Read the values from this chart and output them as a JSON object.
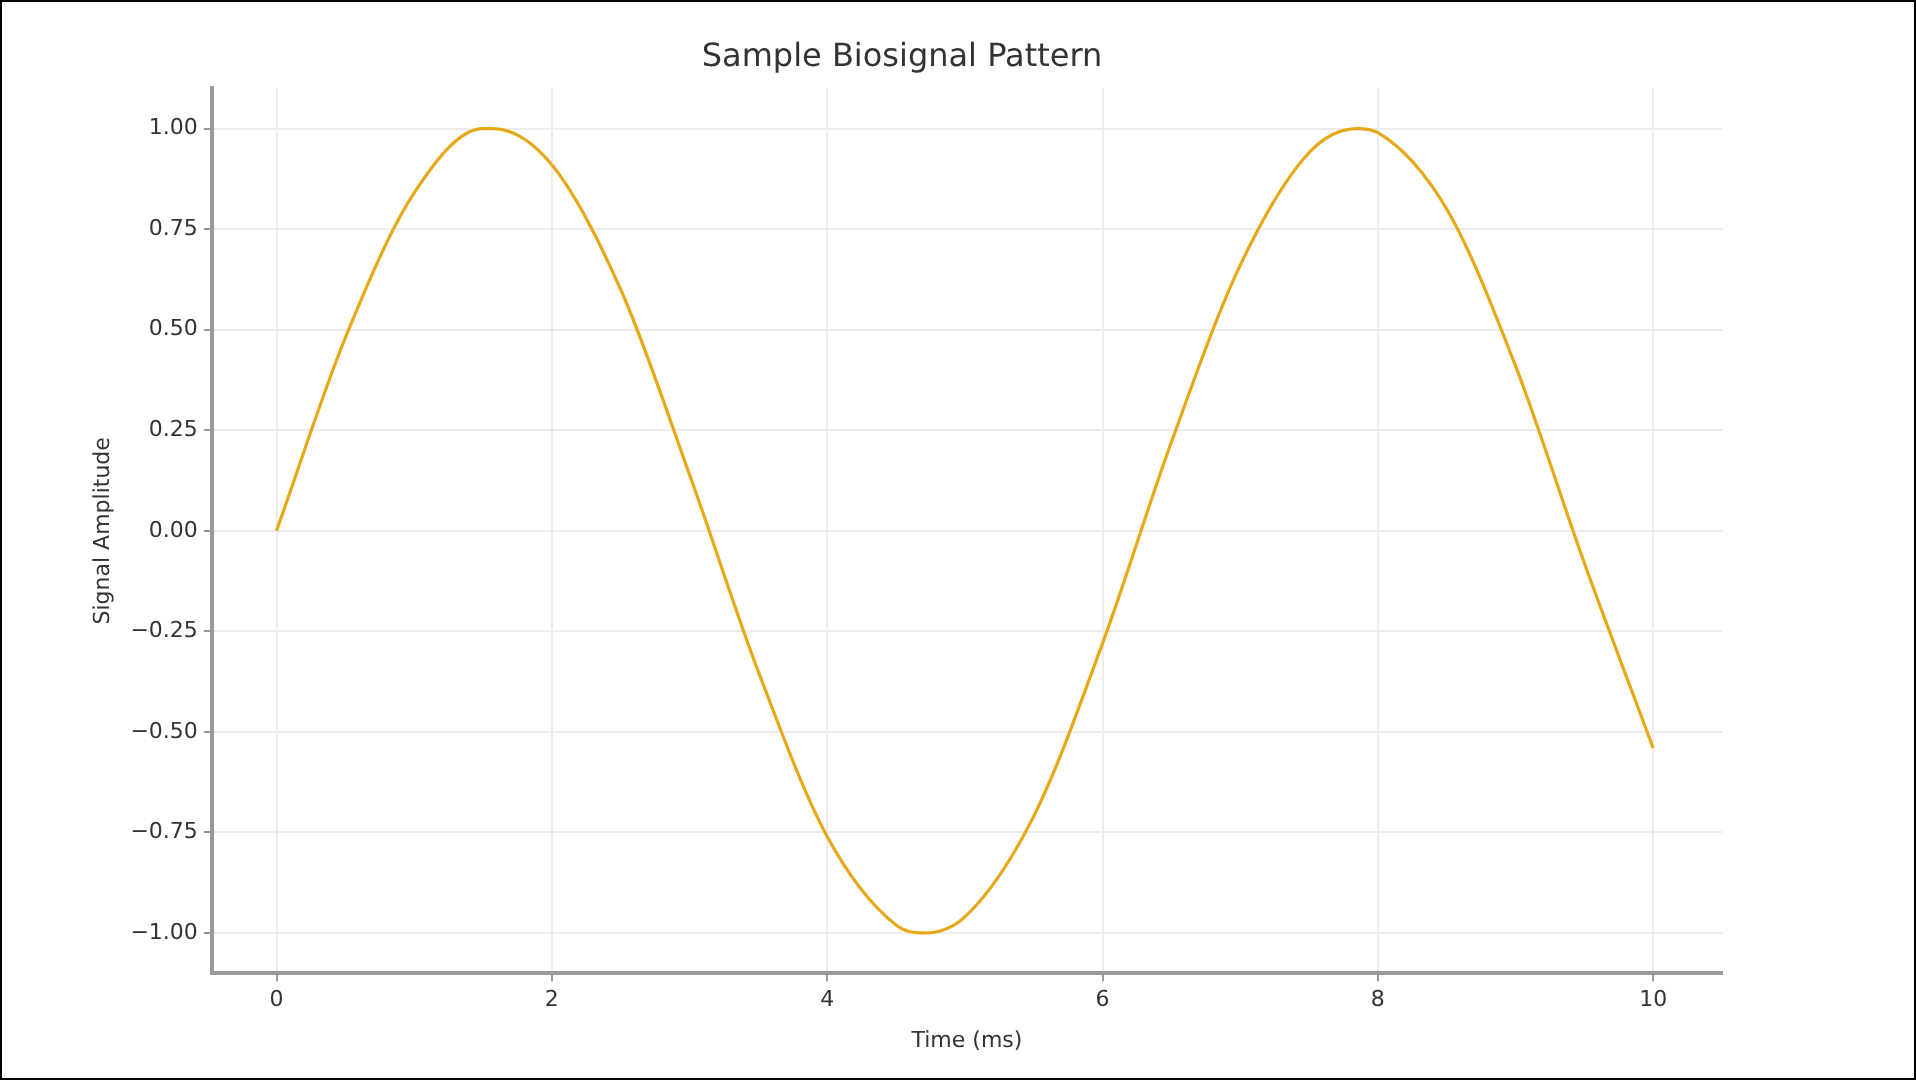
{
  "chart_data": {
    "type": "line",
    "title": "Sample Biosignal Pattern",
    "xlabel": "Time (ms)",
    "ylabel": "Signal Amplitude",
    "x": [
      0,
      0.5,
      1,
      1.5,
      1.57,
      2,
      2.5,
      3,
      3.5,
      4,
      4.5,
      4.71,
      5,
      5.5,
      6,
      6.5,
      7,
      7.5,
      7.85,
      8,
      8.5,
      9,
      9.5,
      10
    ],
    "series": [
      {
        "color": "#e6a817",
        "values": [
          0,
          0.48,
          0.84,
          1.0,
          1.0,
          0.91,
          0.6,
          0.14,
          -0.35,
          -0.76,
          -0.98,
          -1.0,
          -0.96,
          -0.71,
          -0.28,
          0.22,
          0.66,
          0.94,
          1.0,
          0.99,
          0.8,
          0.41,
          -0.08,
          -0.54
        ]
      }
    ],
    "xlim": [
      -0.47,
      10.5
    ],
    "xticks": [
      0,
      2,
      4,
      6,
      8,
      10
    ],
    "ylim": [
      -1.1,
      1.1
    ],
    "yticks": [
      {
        "value": -1,
        "label": "−1.00"
      },
      {
        "value": -0.75,
        "label": "−0.75"
      },
      {
        "value": -0.5,
        "label": "−0.50"
      },
      {
        "value": -0.25,
        "label": "−0.25"
      },
      {
        "value": 0,
        "label": "0.00"
      },
      {
        "value": 0.25,
        "label": "0.25"
      },
      {
        "value": 0.5,
        "label": "0.50"
      },
      {
        "value": 0.75,
        "label": "0.75"
      },
      {
        "value": 1,
        "label": "1.00"
      }
    ],
    "grid": true,
    "marker": "none",
    "line_style": "solid"
  }
}
